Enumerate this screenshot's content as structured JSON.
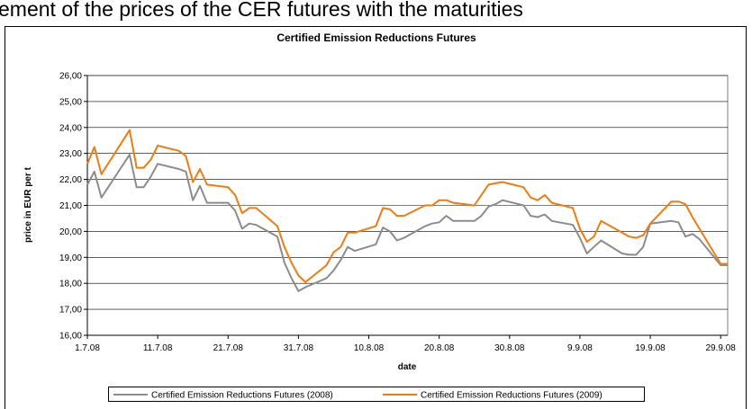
{
  "document_text": "ement of the prices of the CER futures with the maturities",
  "chart_data": {
    "type": "line",
    "title": "Certified Emission Reductions Futures",
    "xlabel": "date",
    "ylabel": "price in EUR per t",
    "x": [
      "1.7.08",
      "2.7.08",
      "3.7.08",
      "7.7.08",
      "8.7.08",
      "9.7.08",
      "10.7.08",
      "11.7.08",
      "14.7.08",
      "15.7.08",
      "16.7.08",
      "17.7.08",
      "18.7.08",
      "21.7.08",
      "22.7.08",
      "23.7.08",
      "24.7.08",
      "25.7.08",
      "28.7.08",
      "29.7.08",
      "30.7.08",
      "31.7.08",
      "1.8.08",
      "4.8.08",
      "5.8.08",
      "6.8.08",
      "7.8.08",
      "8.8.08",
      "11.8.08",
      "12.8.08",
      "13.8.08",
      "14.8.08",
      "15.8.08",
      "18.8.08",
      "19.8.08",
      "20.8.08",
      "21.8.08",
      "22.8.08",
      "25.8.08",
      "26.8.08",
      "27.8.08",
      "28.8.08",
      "29.8.08",
      "1.9.08",
      "2.9.08",
      "3.9.08",
      "4.9.08",
      "5.9.08",
      "8.9.08",
      "9.9.08",
      "10.9.08",
      "11.9.08",
      "12.9.08",
      "15.9.08",
      "16.9.08",
      "17.9.08",
      "18.9.08",
      "19.9.08",
      "22.9.08",
      "23.9.08",
      "24.9.08",
      "25.9.08",
      "26.9.08",
      "29.9.08",
      "30.9.08"
    ],
    "series": [
      {
        "name": "Certified Emission Reductions Futures (2008)",
        "color": "#8c8c8c",
        "values": [
          21.8,
          22.3,
          21.3,
          22.95,
          21.7,
          21.7,
          22.1,
          22.6,
          22.4,
          22.3,
          21.2,
          21.75,
          21.1,
          21.1,
          20.8,
          20.1,
          20.3,
          20.25,
          19.8,
          18.8,
          18.2,
          17.7,
          17.85,
          18.2,
          18.5,
          18.9,
          19.4,
          19.25,
          19.5,
          20.15,
          20.0,
          19.65,
          19.75,
          20.2,
          20.3,
          20.35,
          20.6,
          20.4,
          20.4,
          20.6,
          20.95,
          21.05,
          21.2,
          21.0,
          20.6,
          20.55,
          20.65,
          20.4,
          20.25,
          19.75,
          19.15,
          19.4,
          19.65,
          19.15,
          19.1,
          19.1,
          19.4,
          20.3,
          20.4,
          20.35,
          19.8,
          19.9,
          19.7,
          18.7,
          18.7
        ]
      },
      {
        "name": "Certified Emission Reductions Futures (2009)",
        "color": "#f07c10",
        "values": [
          22.6,
          23.25,
          22.2,
          23.9,
          22.45,
          22.45,
          22.75,
          23.3,
          23.1,
          22.9,
          21.9,
          22.4,
          21.8,
          21.7,
          21.4,
          20.7,
          20.9,
          20.9,
          20.2,
          19.4,
          18.8,
          18.3,
          18.05,
          18.7,
          19.2,
          19.4,
          19.95,
          19.95,
          20.2,
          20.9,
          20.85,
          20.6,
          20.6,
          21.0,
          21.0,
          21.2,
          21.2,
          21.1,
          21.0,
          21.4,
          21.8,
          21.85,
          21.9,
          21.7,
          21.3,
          21.2,
          21.4,
          21.1,
          20.9,
          20.1,
          19.6,
          19.8,
          20.4,
          19.95,
          19.8,
          19.75,
          19.85,
          20.3,
          21.15,
          21.15,
          21.05,
          20.55,
          20.1,
          18.75,
          18.75
        ]
      }
    ],
    "xlim": [
      "1.7.08",
      "30.9.08"
    ],
    "xticks": [
      "1.7.08",
      "11.7.08",
      "21.7.08",
      "31.7.08",
      "10.8.08",
      "20.8.08",
      "30.8.08",
      "9.9.08",
      "19.9.08",
      "29.9.08"
    ],
    "ylim": [
      16,
      26
    ],
    "yticks": [
      {
        "value": 16,
        "label": "16,00"
      },
      {
        "value": 17,
        "label": "17,00"
      },
      {
        "value": 18,
        "label": "18,00"
      },
      {
        "value": 19,
        "label": "19,00"
      },
      {
        "value": 20,
        "label": "20,00"
      },
      {
        "value": 21,
        "label": "21,00"
      },
      {
        "value": 22,
        "label": "22,00"
      },
      {
        "value": 23,
        "label": "23,00"
      },
      {
        "value": 24,
        "label": "24,00"
      },
      {
        "value": 25,
        "label": "25,00"
      },
      {
        "value": 26,
        "label": "26,00"
      }
    ],
    "grid": true,
    "legend": "bottom"
  }
}
